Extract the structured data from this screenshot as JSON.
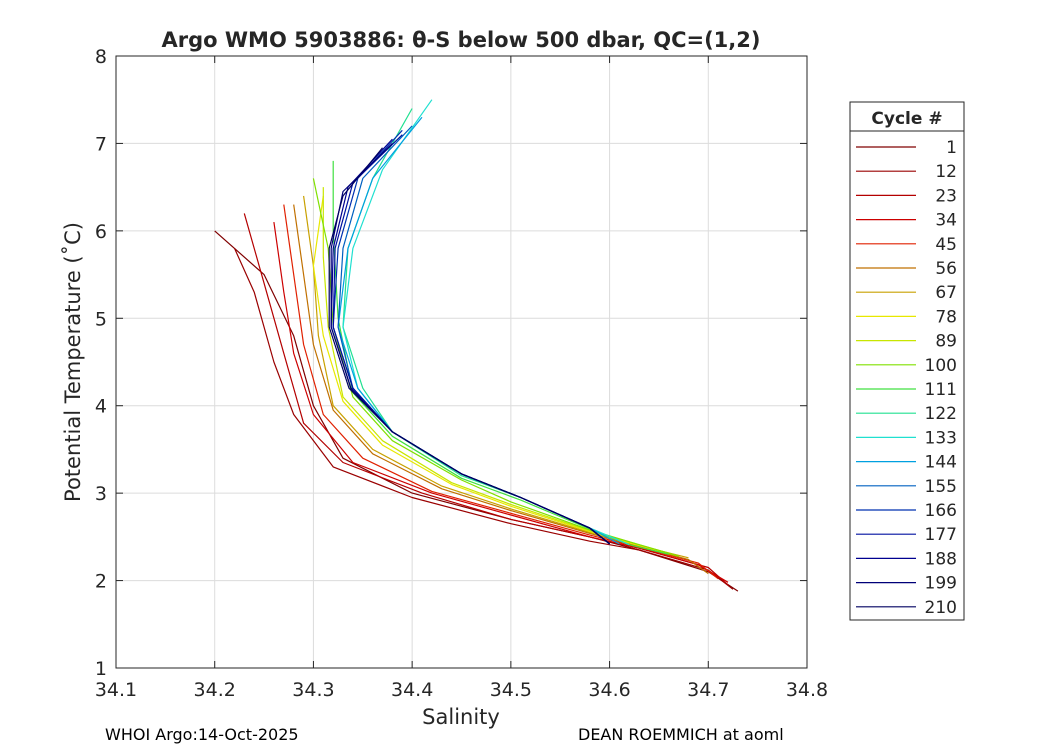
{
  "chart_data": {
    "type": "line",
    "title": "Argo WMO 5903886: θ-S below 500 dbar,  QC=(1,2)",
    "xlabel": "Salinity",
    "ylabel": "Potential Temperature (˚C)",
    "xlim": [
      34.1,
      34.8
    ],
    "ylim": [
      1,
      8
    ],
    "xticks": [
      34.1,
      34.2,
      34.3,
      34.4,
      34.5,
      34.6,
      34.7,
      34.8
    ],
    "xtick_labels": [
      "34.1",
      "34.2",
      "34.3",
      "34.4",
      "34.5",
      "34.6",
      "34.7",
      "34.8"
    ],
    "yticks": [
      1,
      2,
      3,
      4,
      5,
      6,
      7,
      8
    ],
    "ytick_labels": [
      "1",
      "2",
      "3",
      "4",
      "5",
      "6",
      "7",
      "8"
    ],
    "grid": true,
    "legend_title": "Cycle #",
    "legend_position": "right-outside",
    "series": [
      {
        "name": "1",
        "color": "#800000",
        "x": [
          34.2,
          34.25,
          34.28,
          34.3,
          34.33,
          34.4,
          34.5,
          34.58,
          34.63,
          34.7,
          34.73
        ],
        "y": [
          6.0,
          5.5,
          4.8,
          4.0,
          3.4,
          3.0,
          2.7,
          2.5,
          2.35,
          2.1,
          1.88
        ]
      },
      {
        "name": "12",
        "color": "#9a0000",
        "x": [
          34.22,
          34.24,
          34.26,
          34.28,
          34.32,
          34.4,
          34.5,
          34.58,
          34.63,
          34.7,
          34.725
        ],
        "y": [
          5.8,
          5.3,
          4.5,
          3.9,
          3.3,
          2.95,
          2.65,
          2.45,
          2.35,
          2.12,
          1.9
        ]
      },
      {
        "name": "23",
        "color": "#b40000",
        "x": [
          34.23,
          34.25,
          34.27,
          34.29,
          34.33,
          34.41,
          34.5,
          34.58,
          34.63,
          34.7,
          34.72
        ],
        "y": [
          6.2,
          5.4,
          4.6,
          3.8,
          3.35,
          3.0,
          2.7,
          2.5,
          2.37,
          2.15,
          1.95
        ]
      },
      {
        "name": "34",
        "color": "#cc0000",
        "x": [
          34.26,
          34.27,
          34.28,
          34.3,
          34.34,
          34.42,
          34.5,
          34.58,
          34.63,
          34.69,
          34.72
        ],
        "y": [
          6.1,
          5.3,
          4.6,
          3.9,
          3.35,
          3.0,
          2.75,
          2.5,
          2.37,
          2.18,
          1.98
        ]
      },
      {
        "name": "45",
        "color": "#e02000",
        "x": [
          34.27,
          34.28,
          34.29,
          34.31,
          34.35,
          34.42,
          34.5,
          34.58,
          34.63,
          34.69,
          34.71
        ],
        "y": [
          6.3,
          5.5,
          4.7,
          3.9,
          3.4,
          3.02,
          2.77,
          2.52,
          2.38,
          2.2,
          2.02
        ]
      },
      {
        "name": "56",
        "color": "#c07000",
        "x": [
          34.28,
          34.29,
          34.3,
          34.32,
          34.36,
          34.43,
          34.5,
          34.58,
          34.63,
          34.68,
          34.7
        ],
        "y": [
          6.3,
          5.5,
          4.7,
          3.95,
          3.45,
          3.05,
          2.8,
          2.54,
          2.39,
          2.24,
          2.08
        ]
      },
      {
        "name": "67",
        "color": "#c8a000",
        "x": [
          34.29,
          34.3,
          34.305,
          34.32,
          34.36,
          34.43,
          34.5,
          34.58,
          34.63,
          34.68
        ],
        "y": [
          6.4,
          5.6,
          4.8,
          4.0,
          3.5,
          3.08,
          2.82,
          2.55,
          2.4,
          2.26
        ]
      },
      {
        "name": "78",
        "color": "#e8e800",
        "x": [
          34.31,
          34.3,
          34.31,
          34.33,
          34.37,
          34.44,
          34.5,
          34.58,
          34.63,
          34.67
        ],
        "y": [
          6.4,
          5.6,
          4.8,
          4.05,
          3.55,
          3.1,
          2.85,
          2.56,
          2.4,
          2.28
        ]
      },
      {
        "name": "89",
        "color": "#c8e600",
        "x": [
          34.31,
          34.31,
          34.315,
          34.33,
          34.37,
          34.44,
          34.5,
          34.58,
          34.63,
          34.67
        ],
        "y": [
          6.5,
          5.7,
          4.9,
          4.1,
          3.6,
          3.12,
          2.87,
          2.57,
          2.41,
          2.28
        ]
      },
      {
        "name": "100",
        "color": "#80e000",
        "x": [
          34.3,
          34.315,
          34.32,
          34.34,
          34.38,
          34.45,
          34.5,
          34.58,
          34.63,
          34.67
        ],
        "y": [
          6.6,
          5.8,
          4.9,
          4.1,
          3.6,
          3.15,
          2.9,
          2.58,
          2.41,
          2.28
        ]
      },
      {
        "name": "111",
        "color": "#40e040",
        "x": [
          34.32,
          34.32,
          34.325,
          34.34,
          34.38,
          34.45,
          34.51,
          34.58,
          34.62,
          34.66
        ],
        "y": [
          6.8,
          6.0,
          5.0,
          4.15,
          3.65,
          3.17,
          2.92,
          2.59,
          2.41,
          2.3
        ]
      },
      {
        "name": "122",
        "color": "#20e090",
        "x": [
          34.4,
          34.36,
          34.335,
          34.33,
          34.35,
          34.38,
          34.45,
          34.51,
          34.58,
          34.62
        ],
        "y": [
          7.4,
          6.6,
          5.8,
          4.9,
          4.2,
          3.7,
          3.2,
          2.95,
          2.6,
          2.41
        ]
      },
      {
        "name": "133",
        "color": "#20e0d0",
        "x": [
          34.42,
          34.37,
          34.34,
          34.33,
          34.345,
          34.38,
          34.45,
          34.51,
          34.58,
          34.62
        ],
        "y": [
          7.5,
          6.7,
          5.8,
          4.9,
          4.2,
          3.7,
          3.22,
          2.95,
          2.6,
          2.41
        ]
      },
      {
        "name": "144",
        "color": "#00a0e0",
        "x": [
          34.41,
          34.36,
          34.335,
          34.325,
          34.345,
          34.38,
          34.45,
          34.51,
          34.58,
          34.61
        ],
        "y": [
          7.3,
          6.6,
          5.8,
          4.9,
          4.2,
          3.7,
          3.22,
          2.95,
          2.6,
          2.42
        ]
      },
      {
        "name": "155",
        "color": "#0060c0",
        "x": [
          34.4,
          34.35,
          34.33,
          34.325,
          34.34,
          34.38,
          34.45,
          34.51,
          34.58,
          34.6
        ],
        "y": [
          7.2,
          6.6,
          5.8,
          4.9,
          4.2,
          3.7,
          3.22,
          2.95,
          2.6,
          2.42
        ]
      },
      {
        "name": "166",
        "color": "#0030b0",
        "x": [
          34.39,
          34.345,
          34.325,
          34.32,
          34.34,
          34.38,
          34.45,
          34.51,
          34.58,
          34.6
        ],
        "y": [
          7.15,
          6.6,
          5.8,
          4.9,
          4.2,
          3.7,
          3.22,
          2.95,
          2.6,
          2.42
        ]
      },
      {
        "name": "177",
        "color": "#0010a0",
        "x": [
          34.39,
          34.34,
          34.322,
          34.32,
          34.34,
          34.38,
          34.45,
          34.51,
          34.58,
          34.6
        ],
        "y": [
          7.1,
          6.55,
          5.8,
          4.9,
          4.2,
          3.7,
          3.22,
          2.95,
          2.6,
          2.42
        ]
      },
      {
        "name": "188",
        "color": "#000090",
        "x": [
          34.38,
          34.335,
          34.32,
          34.318,
          34.338,
          34.38,
          34.45,
          34.51,
          34.58,
          34.6
        ],
        "y": [
          7.05,
          6.5,
          5.8,
          4.9,
          4.2,
          3.7,
          3.22,
          2.95,
          2.6,
          2.42
        ]
      },
      {
        "name": "199",
        "color": "#000078",
        "x": [
          34.38,
          34.33,
          34.318,
          34.318,
          34.338,
          34.38,
          34.45,
          34.51,
          34.58,
          34.6
        ],
        "y": [
          7.0,
          6.45,
          5.8,
          4.9,
          4.2,
          3.7,
          3.22,
          2.95,
          2.6,
          2.42
        ]
      },
      {
        "name": "210",
        "color": "#000060",
        "x": [
          34.37,
          34.33,
          34.316,
          34.316,
          34.336,
          34.38,
          34.45,
          34.51,
          34.58,
          34.6
        ],
        "y": [
          6.95,
          6.4,
          5.8,
          4.9,
          4.2,
          3.7,
          3.22,
          2.95,
          2.6,
          2.42
        ]
      }
    ]
  },
  "footer": {
    "left": "WHOI Argo:14-Oct-2025",
    "right": "DEAN ROEMMICH at aoml"
  }
}
